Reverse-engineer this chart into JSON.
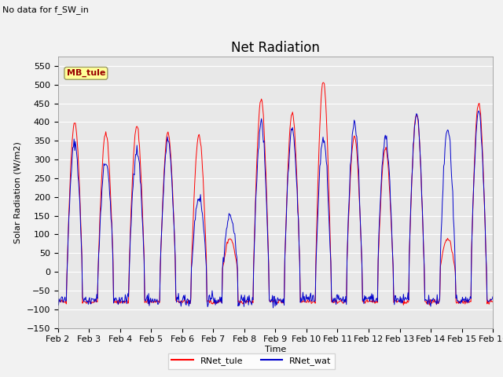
{
  "title": "Net Radiation",
  "subtitle": "No data for f_SW_in",
  "ylabel": "Solar Radiation (W/m2)",
  "xlabel": "Time",
  "ylim": [
    -150,
    575
  ],
  "yticks": [
    -150,
    -100,
    -50,
    0,
    50,
    100,
    150,
    200,
    250,
    300,
    350,
    400,
    450,
    500,
    550
  ],
  "xtick_labels": [
    "Feb 2",
    "Feb 3",
    "Feb 4",
    "Feb 5",
    "Feb 6",
    "Feb 7",
    "Feb 8",
    "Feb 9",
    "Feb 10",
    "Feb 11",
    "Feb 12",
    "Feb 13",
    "Feb 14",
    "Feb 15",
    "Feb 16"
  ],
  "station_label": "MB_tule",
  "line1_color": "#ff0000",
  "line1_label": "RNet_tule",
  "line2_color": "#0000cc",
  "line2_label": "RNet_wat",
  "background_color": "#e8e8e8",
  "grid_color": "#ffffff",
  "legend_box_color": "#ffff99",
  "legend_box_edge": "#aaaaaa",
  "title_fontsize": 12,
  "label_fontsize": 8,
  "tick_fontsize": 8
}
